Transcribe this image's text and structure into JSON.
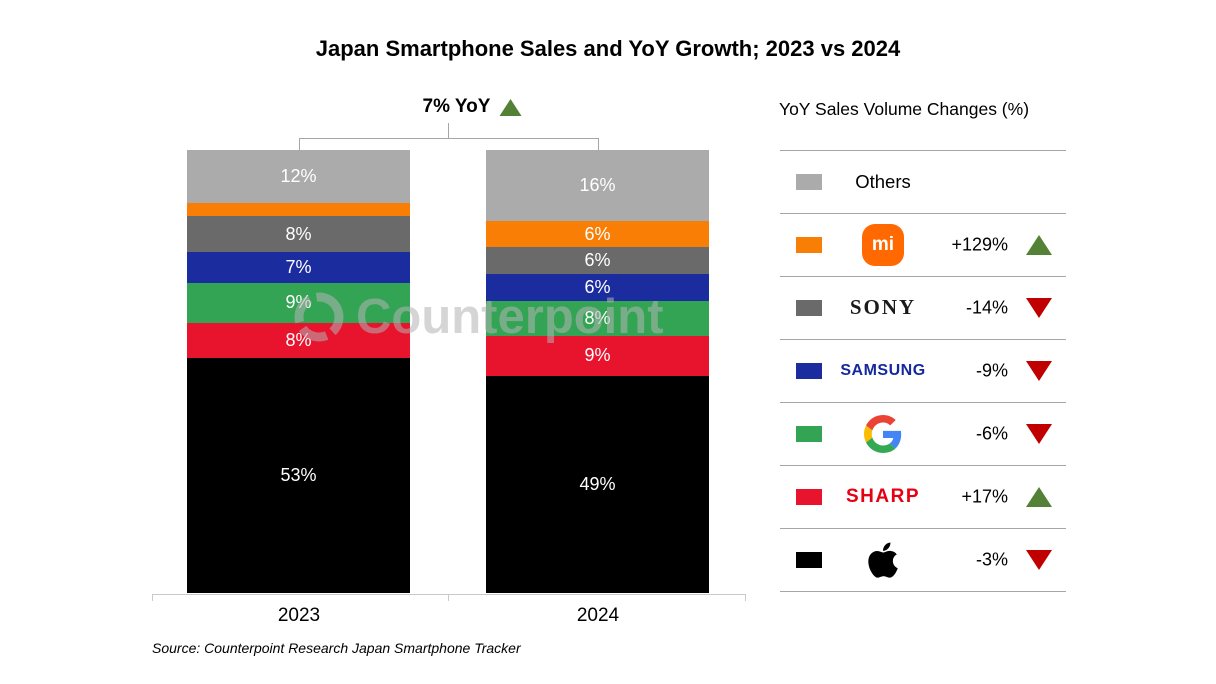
{
  "title": "Japan Smartphone Sales and YoY Growth; 2023 vs 2024",
  "annotation": {
    "text": "7% YoY",
    "direction": "up"
  },
  "watermark": "Counterpoint",
  "source": "Source: Counterpoint Research Japan Smartphone Tracker",
  "chart_data": {
    "type": "bar",
    "subtype": "100%-stacked-column",
    "title": "Japan Smartphone Sales and YoY Growth; 2023 vs 2024",
    "categories": [
      "2023",
      "2024"
    ],
    "series": [
      {
        "name": "Apple",
        "color": "#000000",
        "values": [
          53,
          49
        ],
        "labels": [
          "53%",
          "49%"
        ]
      },
      {
        "name": "Sharp",
        "color": "#e8132d",
        "values": [
          8,
          9
        ],
        "labels": [
          "8%",
          "9%"
        ]
      },
      {
        "name": "Google",
        "color": "#33a454",
        "values": [
          9,
          8
        ],
        "labels": [
          "9%",
          "8%"
        ]
      },
      {
        "name": "Samsung",
        "color": "#1b2d9e",
        "values": [
          7,
          6
        ],
        "labels": [
          "7%",
          "6%"
        ]
      },
      {
        "name": "Sony",
        "color": "#6a6a6a",
        "values": [
          8,
          6
        ],
        "labels": [
          "8%",
          "6%"
        ]
      },
      {
        "name": "Xiaomi",
        "color": "#f87e05",
        "values": [
          3,
          6
        ],
        "labels": [
          "",
          "6%"
        ]
      },
      {
        "name": "Others",
        "color": "#ababab",
        "values": [
          12,
          16
        ],
        "labels": [
          "12%",
          "16%"
        ]
      }
    ],
    "stack_order": "bottom-to-top",
    "ylim": [
      0,
      100
    ],
    "grid": false,
    "growth_annotation": "7% YoY",
    "legend_position": "right"
  },
  "legend": {
    "title": "YoY Sales Volume Changes (%)",
    "rows": [
      {
        "brand": "Others",
        "logo": "text",
        "logo_text": "Others",
        "swatch": "#ababab",
        "change": "",
        "direction": ""
      },
      {
        "brand": "Xiaomi",
        "logo": "mi-badge",
        "logo_text": "mi",
        "swatch": "#f87e05",
        "change": "+129%",
        "direction": "up"
      },
      {
        "brand": "Sony",
        "logo": "wordmark",
        "logo_text": "SONY",
        "swatch": "#6a6a6a",
        "change": "-14%",
        "direction": "down"
      },
      {
        "brand": "Samsung",
        "logo": "wordmark",
        "logo_text": "SAMSUNG",
        "swatch": "#1b2d9e",
        "change": "-9%",
        "direction": "down"
      },
      {
        "brand": "Google",
        "logo": "google-g",
        "logo_text": "",
        "swatch": "#33a454",
        "change": "-6%",
        "direction": "down"
      },
      {
        "brand": "Sharp",
        "logo": "wordmark",
        "logo_text": "SHARP",
        "swatch": "#e8132d",
        "change": "+17%",
        "direction": "up"
      },
      {
        "brand": "Apple",
        "logo": "apple",
        "logo_text": "",
        "swatch": "#000000",
        "change": "-3%",
        "direction": "down"
      }
    ]
  },
  "colors": {
    "up_triangle": "#538135",
    "down_triangle": "#c00000",
    "axis": "#c9c9c9",
    "bracket": "#a6a6a6",
    "samsung_wordmark": "#1428a0",
    "sharp_wordmark": "#e60012",
    "xiaomi_badge": "#ff6900"
  }
}
